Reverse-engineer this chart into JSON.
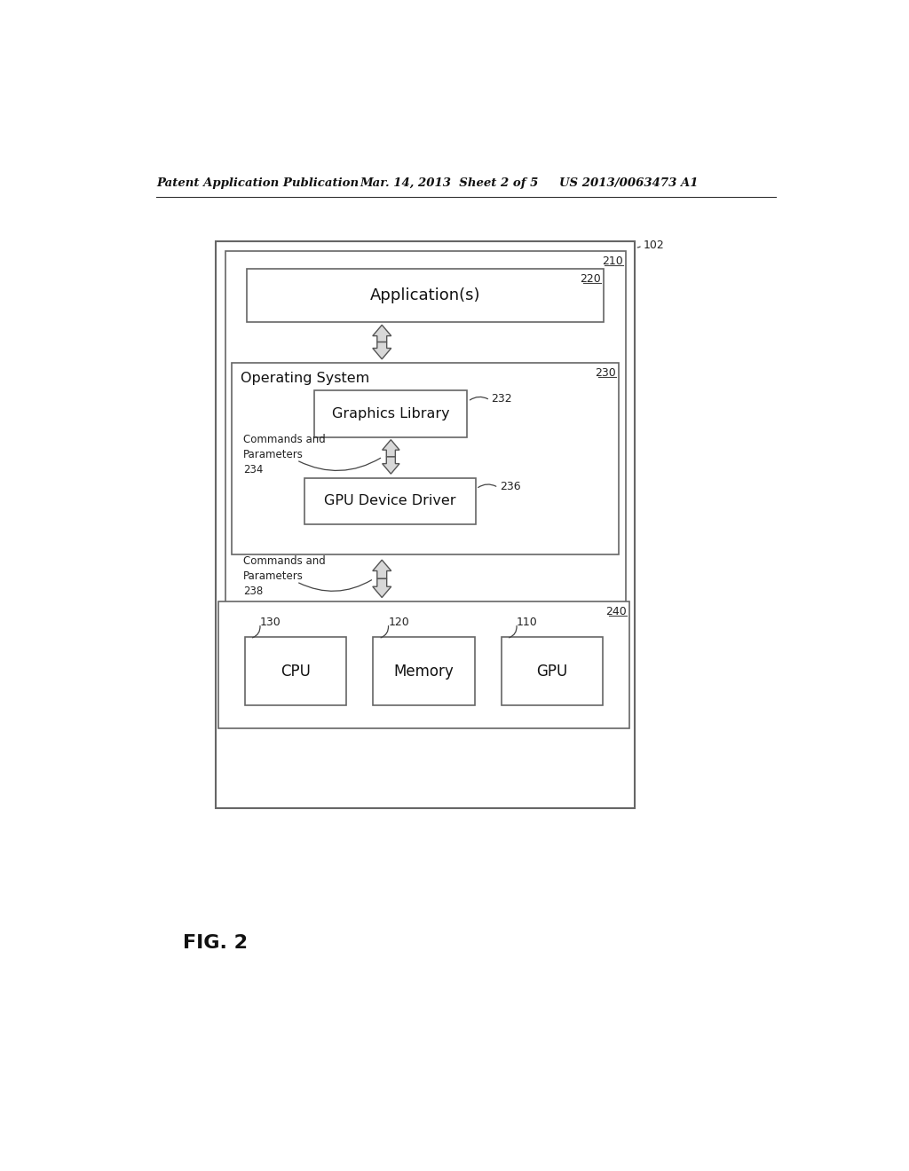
{
  "header_left": "Patent Application Publication",
  "header_mid": "Mar. 14, 2013  Sheet 2 of 5",
  "header_right": "US 2013/0063473 A1",
  "fig_label": "FIG. 2",
  "bg_color": "#ffffff",
  "box_edge": "#555555",
  "label_102": "102",
  "label_210": "210",
  "label_220": "220",
  "label_230": "230",
  "label_232": "232",
  "label_234": "234",
  "label_236": "236",
  "label_238": "238",
  "label_240": "240",
  "label_130": "130",
  "label_120": "120",
  "label_110": "110",
  "text_applications": "Application(s)",
  "text_os": "Operating System",
  "text_graphics": "Graphics Library",
  "text_gpu_driver": "GPU Device Driver",
  "text_cpu": "CPU",
  "text_memory": "Memory",
  "text_gpu": "GPU",
  "text_cmd_params_234": "Commands and\nParameters\n234",
  "text_cmd_params_238": "Commands and\nParameters\n238"
}
